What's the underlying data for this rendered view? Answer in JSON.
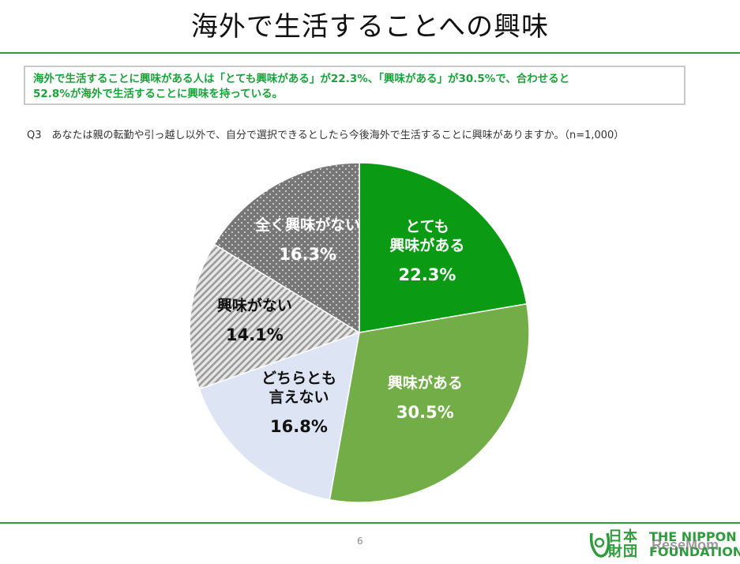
{
  "page": {
    "title": "海外で生活することへの興味",
    "summary_line1": "海外で生活することに興味がある人は「とても興味がある」が22.3%、「興味がある」が30.5%で、合わせると",
    "summary_line2": "52.8%が海外で生活することに興味を持っている。",
    "question": "Q3　あなたは親の転勤や引っ越し以外で、自分で選択できるとしたら今後海外で生活することに興味がありますか。（n=1,000）",
    "page_number": "6",
    "logo_jp_line1": "日本",
    "logo_jp_line2": "財団",
    "logo_en_line1": "THE NIPPON",
    "logo_en_line2": "FOUNDATION",
    "watermark": "ReseMom"
  },
  "chart_data": {
    "type": "pie",
    "n": "n=1,000",
    "start_angle_deg": 0,
    "direction": "clockwise",
    "slices": [
      {
        "label_lines": [
          "とても",
          "興味がある"
        ],
        "value": 22.3,
        "value_label": "22.3%",
        "color": "#0a9a14",
        "pattern": "solid",
        "text_color": "#ffffff"
      },
      {
        "label_lines": [
          "興味がある"
        ],
        "value": 30.5,
        "value_label": "30.5%",
        "color": "#72ad47",
        "pattern": "solid",
        "text_color": "#ffffff"
      },
      {
        "label_lines": [
          "どちらとも",
          "言えない"
        ],
        "value": 16.8,
        "value_label": "16.8%",
        "color": "#dde4f3",
        "pattern": "solid",
        "text_color": "#111111"
      },
      {
        "label_lines": [
          "興味がない"
        ],
        "value": 14.1,
        "value_label": "14.1%",
        "color": "#c8c8c8",
        "pattern": "stripes",
        "text_color": "#111111"
      },
      {
        "label_lines": [
          "全く興味がない"
        ],
        "value": 16.3,
        "value_label": "16.3%",
        "color": "#7d7d7d",
        "pattern": "dots",
        "text_color": "#ffffff"
      }
    ]
  },
  "colors": {
    "accent_green": "#2e9b3c",
    "summary_text": "#1aa33a"
  }
}
